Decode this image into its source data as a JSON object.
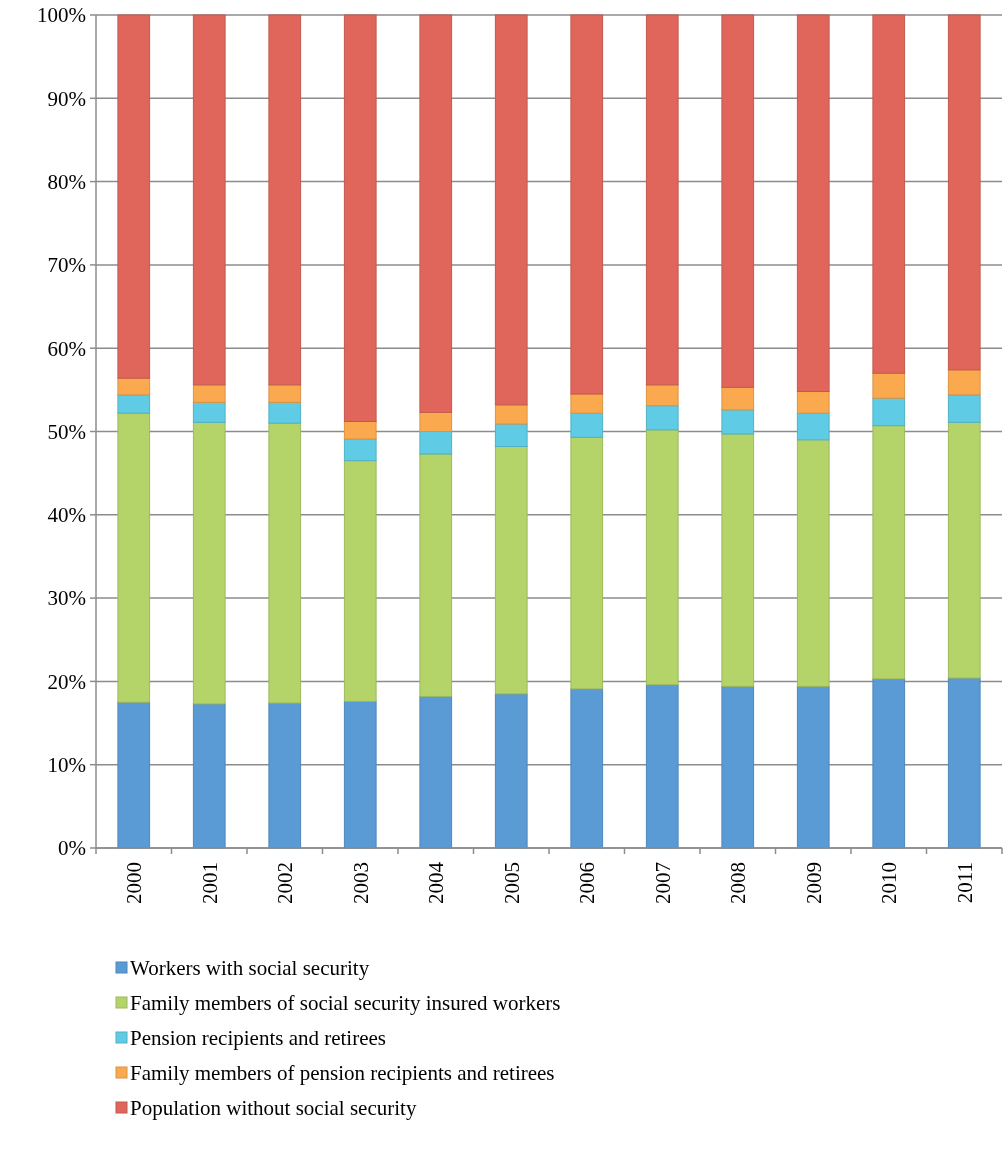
{
  "chart_data": {
    "type": "bar",
    "stacked": true,
    "categories": [
      "2000",
      "2001",
      "2002",
      "2003",
      "2004",
      "2005",
      "2006",
      "2007",
      "2008",
      "2009",
      "2010",
      "2011"
    ],
    "series": [
      {
        "name": "Workers with social security",
        "color": "#5b9bd5",
        "values": [
          17.5,
          17.3,
          17.4,
          17.6,
          18.2,
          18.5,
          19.1,
          19.6,
          19.4,
          19.4,
          20.3,
          20.4
        ]
      },
      {
        "name": "Family members  of social security insured workers",
        "color": "#b4d46a",
        "values": [
          34.7,
          33.8,
          33.6,
          28.9,
          29.1,
          29.7,
          30.2,
          30.6,
          30.3,
          29.6,
          30.4,
          30.7
        ]
      },
      {
        "name": "Pension recipients and retirees",
        "color": "#5fcbe4",
        "values": [
          2.2,
          2.4,
          2.5,
          2.6,
          2.7,
          2.7,
          2.9,
          2.9,
          2.9,
          3.2,
          3.3,
          3.3
        ]
      },
      {
        "name": "Family members of pension recipients and retirees",
        "color": "#fba94f",
        "values": [
          2.0,
          2.1,
          2.1,
          2.1,
          2.3,
          2.3,
          2.3,
          2.5,
          2.7,
          2.6,
          3.0,
          3.0
        ]
      },
      {
        "name": "Population without social security",
        "color": "#e0665c",
        "values": [
          43.6,
          44.4,
          44.4,
          48.8,
          47.7,
          46.8,
          45.5,
          44.4,
          44.7,
          45.2,
          43.0,
          42.6
        ]
      }
    ],
    "ylim": [
      0,
      100
    ],
    "yticks": [
      {
        "value": 0,
        "label": "0%"
      },
      {
        "value": 10,
        "label": "10%"
      },
      {
        "value": 20,
        "label": "20%"
      },
      {
        "value": 30,
        "label": "30%"
      },
      {
        "value": 40,
        "label": "40%"
      },
      {
        "value": 50,
        "label": "50%"
      },
      {
        "value": 60,
        "label": "60%"
      },
      {
        "value": 70,
        "label": "70%"
      },
      {
        "value": 80,
        "label": "80%"
      },
      {
        "value": 90,
        "label": "90%"
      },
      {
        "value": 100,
        "label": "100%"
      }
    ],
    "grid": "y",
    "legend": "bottom"
  }
}
